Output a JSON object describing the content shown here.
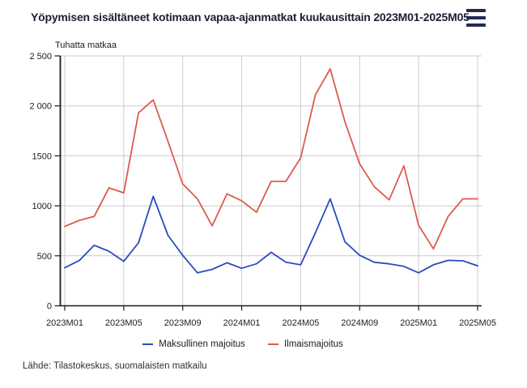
{
  "header": {
    "title": "Yöpymisen sisältäneet kotimaan vapaa-ajanmatkat kuukausittain 2023M01-2025M05",
    "menu_icon": "hamburger-menu"
  },
  "chart": {
    "unit_label": "Tuhatta matkaa",
    "colors": {
      "grid": "#cccccc",
      "axis": "#1a1a1a",
      "tick_text": "#1c1c1c"
    }
  },
  "chart_data": {
    "type": "line",
    "title": "Yöpymisen sisältäneet kotimaan vapaa-ajanmatkat kuukausittain 2023M01-2025M05",
    "ylabel": "Tuhatta matkaa",
    "xlabel": "",
    "ylim": [
      0,
      2500
    ],
    "grid": true,
    "legend_position": "bottom",
    "x": [
      "2023M01",
      "2023M02",
      "2023M03",
      "2023M04",
      "2023M05",
      "2023M06",
      "2023M07",
      "2023M08",
      "2023M09",
      "2023M10",
      "2023M11",
      "2023M12",
      "2024M01",
      "2024M02",
      "2024M03",
      "2024M04",
      "2024M05",
      "2024M06",
      "2024M07",
      "2024M08",
      "2024M09",
      "2024M10",
      "2024M11",
      "2024M12",
      "2025M01",
      "2025M02",
      "2025M03",
      "2025M04",
      "2025M05"
    ],
    "x_ticks": [
      {
        "index": 0,
        "label": "2023M01"
      },
      {
        "index": 4,
        "label": "2023M05"
      },
      {
        "index": 8,
        "label": "2023M09"
      },
      {
        "index": 12,
        "label": "2024M01"
      },
      {
        "index": 16,
        "label": "2024M05"
      },
      {
        "index": 20,
        "label": "2024M09"
      },
      {
        "index": 24,
        "label": "2025M01"
      },
      {
        "index": 28,
        "label": "2025M05"
      }
    ],
    "y_ticks": [
      {
        "value": 0,
        "label": "0"
      },
      {
        "value": 500,
        "label": "500"
      },
      {
        "value": 1000,
        "label": "1000"
      },
      {
        "value": 1500,
        "label": "1500"
      },
      {
        "value": 2000,
        "label": "2 000"
      },
      {
        "value": 2500,
        "label": "2 500"
      }
    ],
    "series": [
      {
        "name": "Maksullinen majoitus",
        "color": "#2a4bc0",
        "values": [
          380,
          455,
          605,
          545,
          445,
          630,
          1095,
          705,
          505,
          330,
          365,
          430,
          375,
          420,
          535,
          435,
          410,
          730,
          1070,
          640,
          505,
          435,
          420,
          395,
          330,
          410,
          455,
          450,
          400
        ]
      },
      {
        "name": "Ilmaismajoitus",
        "color": "#dc5b4d",
        "values": [
          795,
          855,
          895,
          1180,
          1130,
          1930,
          2060,
          1645,
          1220,
          1070,
          800,
          1120,
          1050,
          935,
          1245,
          1245,
          1480,
          2110,
          2370,
          1840,
          1420,
          1190,
          1060,
          1400,
          805,
          570,
          895,
          1070,
          1070
        ]
      }
    ]
  },
  "footer": {
    "source": "Lähde: Tilastokeskus, suomalaisten matkailu"
  }
}
